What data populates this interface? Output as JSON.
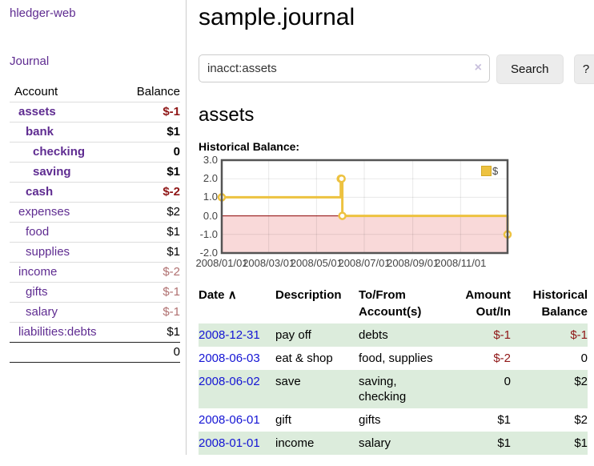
{
  "colors": {
    "link_purple": "#5f2c91",
    "link_blue": "#1414d4",
    "negative_strong": "#8f1616",
    "negative_light": "#b07070",
    "row_stripe_green": "#dcecdc",
    "chart_line_gold": "#edc240",
    "chart_negative_region": "#f9d9d9",
    "chart_zero_line": "#8b0000",
    "chart_border": "#545454",
    "button_gray": "#ececec"
  },
  "sidebar": {
    "app_title": "hledger-web",
    "nav": {
      "journal": "Journal"
    },
    "accounts_table": {
      "headers": {
        "account": "Account",
        "balance": "Balance"
      },
      "rows": [
        {
          "name": "assets",
          "depth": 1,
          "emph": true,
          "balance": "$-1"
        },
        {
          "name": "bank",
          "depth": 2,
          "emph": true,
          "balance": "$1"
        },
        {
          "name": "checking",
          "depth": 3,
          "emph": true,
          "balance": "0"
        },
        {
          "name": "saving",
          "depth": 3,
          "emph": true,
          "balance": "$1"
        },
        {
          "name": "cash",
          "depth": 2,
          "emph": true,
          "balance": "$-2"
        },
        {
          "name": "expenses",
          "depth": 1,
          "emph": false,
          "balance": "$2"
        },
        {
          "name": "food",
          "depth": 2,
          "emph": false,
          "balance": "$1"
        },
        {
          "name": "supplies",
          "depth": 2,
          "emph": false,
          "balance": "$1"
        },
        {
          "name": "income",
          "depth": 1,
          "emph": false,
          "balance": "$-2"
        },
        {
          "name": "gifts",
          "depth": 2,
          "emph": false,
          "balance": "$-1"
        },
        {
          "name": "salary",
          "depth": 2,
          "emph": false,
          "balance": "$-1",
          "unvisited": true
        },
        {
          "name": "liabilities:debts",
          "depth": 1,
          "emph": false,
          "balance": "$1"
        }
      ],
      "total": "0"
    }
  },
  "main": {
    "title": "sample.journal",
    "search": {
      "query": "inacct:assets",
      "clear_icon": "×",
      "search_label": "Search",
      "help_label": "?"
    },
    "account_heading": "assets",
    "chart_label": "Historical Balance:",
    "register": {
      "headers": {
        "date": "Date",
        "sort_icon": "∧",
        "description": "Description",
        "tofrom": "To/From Account(s)",
        "amount": "Amount Out/In",
        "balance": "Historical Balance"
      },
      "rows": [
        {
          "date": "2008-12-31",
          "description": "pay off",
          "accounts": "debts",
          "amount": "$-1",
          "balance": "$-1"
        },
        {
          "date": "2008-06-03",
          "description": "eat & shop",
          "accounts": "food, supplies",
          "amount": "$-2",
          "balance": "0"
        },
        {
          "date": "2008-06-02",
          "description": "save",
          "accounts": "saving, checking",
          "amount": "0",
          "balance": "$2"
        },
        {
          "date": "2008-06-01",
          "description": "gift",
          "accounts": "gifts",
          "amount": "$1",
          "balance": "$2"
        },
        {
          "date": "2008-01-01",
          "description": "income",
          "accounts": "salary",
          "amount": "$1",
          "balance": "$1"
        }
      ]
    }
  },
  "chart_data": {
    "type": "line",
    "title": "Historical Balance:",
    "step": true,
    "series": [
      {
        "name": "$",
        "color": "#edc240",
        "points": [
          [
            "2008-01-01",
            1
          ],
          [
            "2008-06-01",
            2
          ],
          [
            "2008-06-02",
            2
          ],
          [
            "2008-06-03",
            0
          ],
          [
            "2008-12-31",
            -1
          ]
        ]
      }
    ],
    "xrange": [
      "2008-01-01",
      "2008-12-31"
    ],
    "ylim": [
      -2,
      3
    ],
    "yticks": [
      "3.0",
      "2.0",
      "1.0",
      "0.0",
      "-1.0",
      "-2.0"
    ],
    "xticks": [
      "2008/01/01",
      "2008/03/01",
      "2008/05/01",
      "2008/07/01",
      "2008/09/01",
      "2008/11/01"
    ],
    "grid": true,
    "legend_position": "top-right",
    "negative_region_color": "#f9d9d9",
    "zero_line_color": "#8b0000"
  }
}
